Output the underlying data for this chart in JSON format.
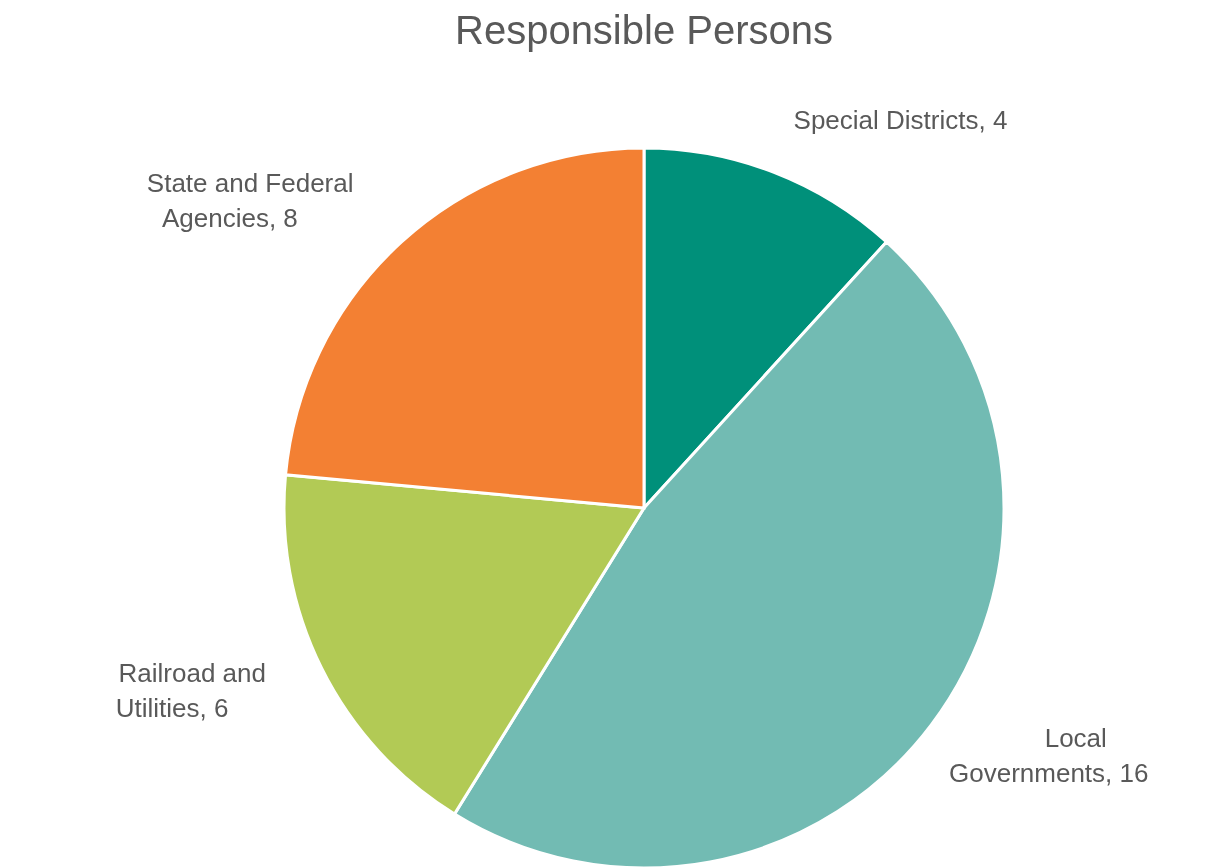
{
  "chart_data": {
    "type": "pie",
    "title": "Responsible Persons",
    "categories": [
      "Special Districts",
      "Local Governments",
      "Railroad and Utilities",
      "State and Federal Agencies"
    ],
    "values": [
      4,
      16,
      6,
      8
    ],
    "colors": [
      "#00907a",
      "#72bbb3",
      "#b2ca55",
      "#f38033"
    ],
    "value_labels": [
      ", 4",
      ", 16",
      ", 6",
      ", 8"
    ],
    "legend": false
  }
}
